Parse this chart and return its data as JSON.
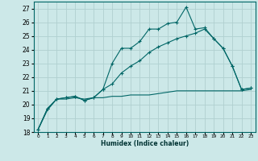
{
  "xlabel": "Humidex (Indice chaleur)",
  "bg_color": "#cce8e8",
  "grid_color": "#b0d0d0",
  "line_color": "#006666",
  "xlim": [
    -0.5,
    23.5
  ],
  "ylim": [
    18,
    27.5
  ],
  "xticks": [
    0,
    1,
    2,
    3,
    4,
    5,
    6,
    7,
    8,
    9,
    10,
    11,
    12,
    13,
    14,
    15,
    16,
    17,
    18,
    19,
    20,
    21,
    22,
    23
  ],
  "yticks": [
    18,
    19,
    20,
    21,
    22,
    23,
    24,
    25,
    26,
    27
  ],
  "line1_x": [
    0,
    1,
    2,
    3,
    4,
    5,
    6,
    7,
    8,
    9,
    10,
    11,
    12,
    13,
    14,
    15,
    16,
    17,
    18,
    19,
    20,
    21,
    22,
    23
  ],
  "line1_y": [
    18.2,
    19.7,
    20.4,
    20.5,
    20.6,
    20.3,
    20.5,
    21.1,
    23.0,
    24.1,
    24.1,
    24.6,
    25.5,
    25.5,
    25.9,
    26.0,
    27.1,
    25.5,
    25.6,
    24.8,
    24.1,
    22.8,
    21.1,
    21.2
  ],
  "line2_x": [
    0,
    1,
    2,
    3,
    4,
    5,
    6,
    7,
    8,
    9,
    10,
    11,
    12,
    13,
    14,
    15,
    16,
    17,
    18,
    19,
    20,
    21,
    22,
    23
  ],
  "line2_y": [
    18.2,
    19.7,
    20.4,
    20.5,
    20.6,
    20.3,
    20.5,
    21.1,
    21.5,
    22.3,
    22.8,
    23.2,
    23.8,
    24.2,
    24.5,
    24.8,
    25.0,
    25.2,
    25.5,
    24.8,
    24.1,
    22.8,
    21.1,
    21.2
  ],
  "line3_x": [
    0,
    1,
    2,
    3,
    4,
    5,
    6,
    7,
    8,
    9,
    10,
    11,
    12,
    13,
    14,
    15,
    16,
    17,
    18,
    19,
    20,
    21,
    22,
    23
  ],
  "line3_y": [
    18.2,
    19.6,
    20.4,
    20.4,
    20.5,
    20.4,
    20.5,
    20.5,
    20.6,
    20.6,
    20.7,
    20.7,
    20.7,
    20.8,
    20.9,
    21.0,
    21.0,
    21.0,
    21.0,
    21.0,
    21.0,
    21.0,
    21.0,
    21.1
  ]
}
